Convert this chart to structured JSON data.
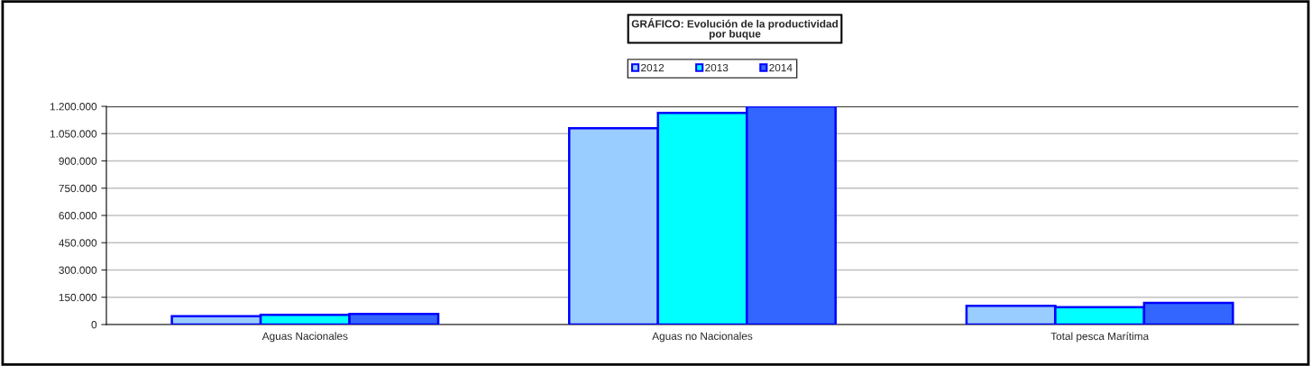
{
  "chart_data": {
    "type": "bar",
    "title": "GRÁFICO: Evolución de la productividad\npor buque",
    "categories": [
      "Aguas Nacionales",
      "Aguas no Nacionales",
      "Total pesca Marítima"
    ],
    "series": [
      {
        "name": "2012",
        "color": "#99ccff",
        "values": [
          46000,
          1080000,
          102500
        ]
      },
      {
        "name": "2013",
        "color": "#00ffff",
        "values": [
          53000,
          1164000,
          96000
        ]
      },
      {
        "name": "2014",
        "color": "#3366ff",
        "values": [
          58000,
          1200000,
          119000
        ]
      }
    ],
    "ylim": [
      0,
      1200000
    ],
    "yticks": [
      {
        "value": 0,
        "label": "0"
      },
      {
        "value": 150000,
        "label": "150.000"
      },
      {
        "value": 300000,
        "label": "300.000"
      },
      {
        "value": 450000,
        "label": "450.000"
      },
      {
        "value": 600000,
        "label": "600.000"
      },
      {
        "value": 750000,
        "label": "750.000"
      },
      {
        "value": 900000,
        "label": "900.000"
      },
      {
        "value": 1050000,
        "label": "1.050.000"
      },
      {
        "value": 1200000,
        "label": "1.200.000"
      }
    ],
    "grid": "y",
    "legend": "top"
  }
}
